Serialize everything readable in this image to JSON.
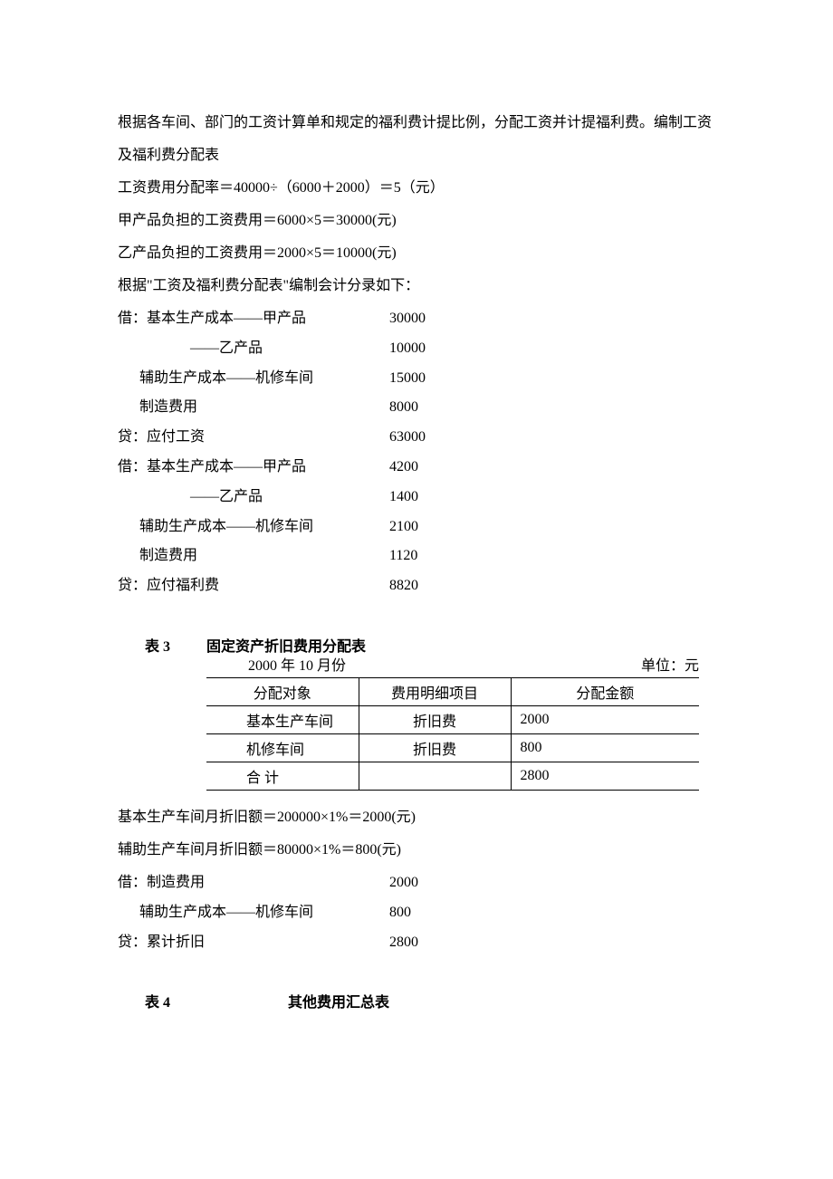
{
  "paras": [
    "根据各车间、部门的工资计算单和规定的福利费计提比例，分配工资并计提福利费。编制工资及福利费分配表",
    "工资费用分配率＝40000÷（6000＋2000）＝5（元）",
    "甲产品负担的工资费用＝6000×5＝30000(元)",
    "乙产品负担的工资费用＝2000×5＝10000(元)",
    "根据\"工资及福利费分配表\"编制会计分录如下："
  ],
  "entries1": [
    {
      "label": "借：基本生产成本——甲产品",
      "amount": "30000"
    },
    {
      "label": "                    ——乙产品",
      "amount": "10000"
    },
    {
      "label": "      辅助生产成本——机修车间",
      "amount": "15000"
    },
    {
      "label": "      制造费用",
      "amount": "8000"
    },
    {
      "label": "贷：应付工资",
      "amount": "63000"
    },
    {
      "label": "借：基本生产成本——甲产品",
      "amount": "4200"
    },
    {
      "label": "                    ——乙产品",
      "amount": "1400"
    },
    {
      "label": "      辅助生产成本——机修车间",
      "amount": "2100"
    },
    {
      "label": "      制造费用",
      "amount": "1120"
    },
    {
      "label": "贷：应付福利费",
      "amount": "8820"
    }
  ],
  "table3": {
    "no": "表 3",
    "name": "固定资产折旧费用分配表",
    "date": "2000 年 10 月份",
    "unit": "单位：元",
    "headers": [
      "分配对象",
      "费用明细项目",
      "分配金额"
    ],
    "rows": [
      {
        "c1": "基本生产车间",
        "c2": "折旧费",
        "c3": "2000",
        "indent": true
      },
      {
        "c1": "机修车间",
        "c2": "折旧费",
        "c3": "800",
        "indent": true
      },
      {
        "c1": "合   计",
        "c2": "",
        "c3": "2800",
        "indent": true
      }
    ]
  },
  "calc2": [
    "基本生产车间月折旧额＝200000×1%＝2000(元)",
    "辅助生产车间月折旧额＝80000×1%＝800(元)"
  ],
  "entries2": [
    {
      "label": "借：制造费用",
      "amount": "2000"
    },
    {
      "label": "      辅助生产成本——机修车间",
      "amount": "800"
    },
    {
      "label": "贷：累计折旧",
      "amount": "2800"
    }
  ],
  "table4": {
    "no": "表 4",
    "name": "其他费用汇总表"
  }
}
